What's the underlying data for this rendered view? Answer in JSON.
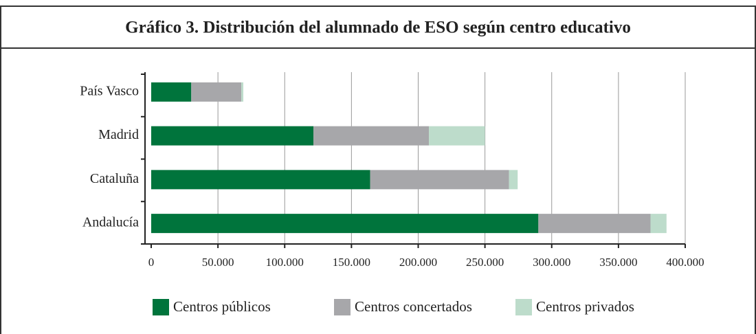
{
  "chart_data": {
    "type": "stacked_barh",
    "title": "Gráfico 3. Distribución del alumnado de ESO según centro educativo",
    "categories": [
      "País Vasco",
      "Madrid",
      "Cataluña",
      "Andalucía"
    ],
    "series": [
      {
        "name": "Centros públicos",
        "color": "#00743c",
        "values": [
          30000,
          121500,
          164000,
          290000
        ]
      },
      {
        "name": "Centros concertados",
        "color": "#a7a7aa",
        "values": [
          37500,
          86500,
          104000,
          84000
        ]
      },
      {
        "name": "Centros privados",
        "color": "#bddccb",
        "values": [
          1500,
          42000,
          6500,
          12000
        ]
      }
    ],
    "xlim": [
      0,
      400000
    ],
    "xticks": [
      0,
      {
        "value": 50000,
        "label": "50.000"
      },
      {
        "value": 100000,
        "label": "100.000"
      },
      {
        "value": 150000,
        "label": "150.000"
      },
      {
        "value": 200000,
        "label": "200.000"
      },
      {
        "value": 250000,
        "label": "250.000"
      },
      {
        "value": 300000,
        "label": "300.000"
      },
      {
        "value": 350000,
        "label": "350.000"
      },
      {
        "value": 400000,
        "label": "400.000"
      }
    ],
    "grid": true
  }
}
